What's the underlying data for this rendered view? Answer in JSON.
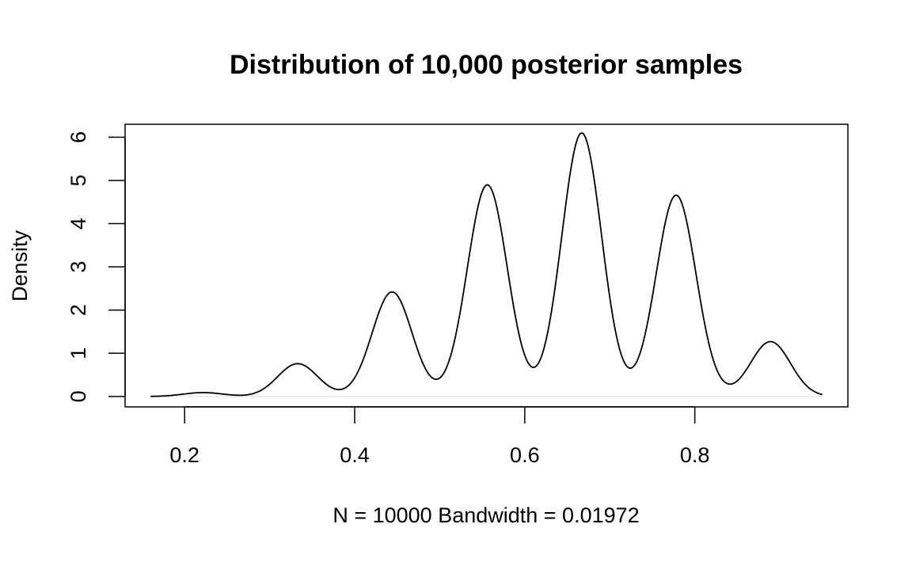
{
  "chart_data": {
    "type": "line",
    "title": "Distribution of 10,000 posterior samples",
    "xlabel": "N = 10000   Bandwidth = 0.01972",
    "ylabel": "Density",
    "xlim": [
      0.13,
      0.98
    ],
    "ylim": [
      -0.24,
      6.3
    ],
    "x_ticks": [
      0.2,
      0.4,
      0.6,
      0.8
    ],
    "x_tick_labels": [
      "0.2",
      "0.4",
      "0.6",
      "0.8"
    ],
    "y_ticks": [
      0,
      1,
      2,
      3,
      4,
      5,
      6
    ],
    "y_tick_labels": [
      "0",
      "1",
      "2",
      "3",
      "4",
      "5",
      "6"
    ],
    "grid": false,
    "legend": "none",
    "line_color": "#000000",
    "zero_line_color": "#e6e6e6",
    "bandwidth": 0.01972,
    "x_range": [
      0.16,
      0.95
    ],
    "peaks": [
      {
        "x": 0.222,
        "y": 0.09
      },
      {
        "x": 0.333,
        "y": 0.76
      },
      {
        "x": 0.444,
        "y": 2.42
      },
      {
        "x": 0.556,
        "y": 4.9
      },
      {
        "x": 0.667,
        "y": 6.1
      },
      {
        "x": 0.778,
        "y": 4.66
      },
      {
        "x": 0.889,
        "y": 1.27
      }
    ]
  }
}
